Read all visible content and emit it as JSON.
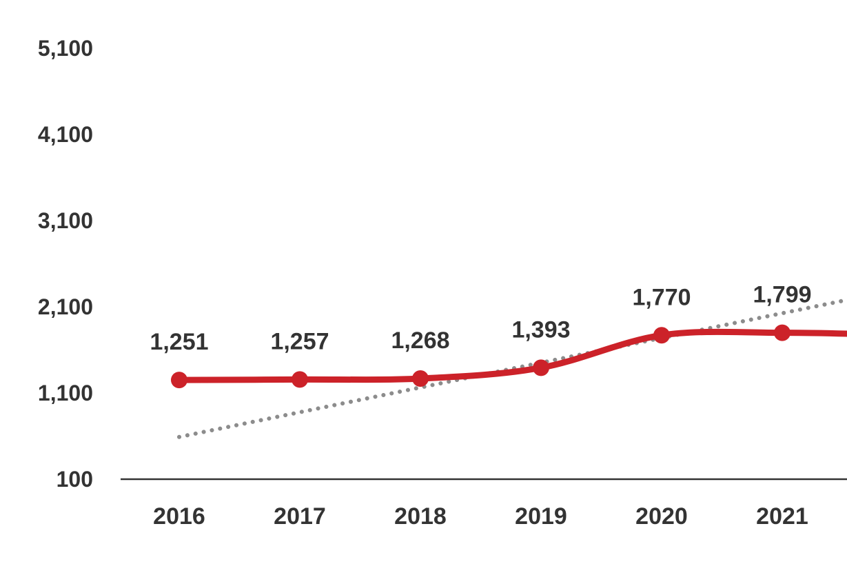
{
  "chart_data": {
    "type": "line",
    "title": "",
    "xlabel": "",
    "ylabel": "",
    "ylim": [
      100,
      5100
    ],
    "yticks": [
      100,
      1100,
      2100,
      3100,
      4100,
      5100
    ],
    "ytick_labels": [
      "100",
      "1,100",
      "2,100",
      "3,100",
      "4,100",
      "5,100"
    ],
    "categories": [
      "2016",
      "2017",
      "2018",
      "2019",
      "2020",
      "2021"
    ],
    "series": [
      {
        "values": [
          1251,
          1257,
          1268,
          1393,
          1770,
          1799
        ],
        "data_labels": [
          "1,251",
          "1,257",
          "1,268",
          "1,393",
          "1,770",
          "1,799"
        ],
        "color": "#cc2229",
        "smooth": true,
        "markers": true,
        "continues_past_right_edge": true,
        "end_value": 1780
      }
    ],
    "trendline": {
      "type": "linear",
      "style": "dotted",
      "color": "#8c8c8c",
      "start": 590,
      "end": 2180
    },
    "grid": false,
    "legend": "none"
  }
}
